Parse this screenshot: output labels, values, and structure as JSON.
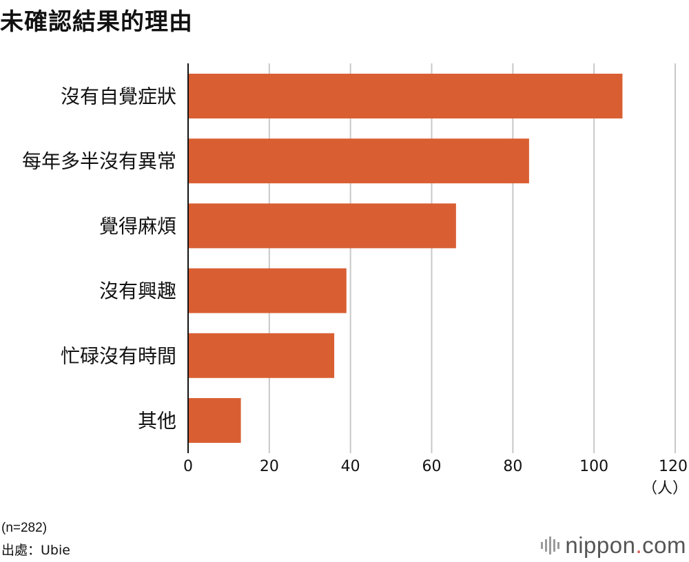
{
  "title": "未確認結果的理由",
  "chart_data": {
    "type": "bar",
    "orientation": "horizontal",
    "title": "未確認結果的理由",
    "categories": [
      "沒有自覺症狀",
      "每年多半沒有異常",
      "覺得麻煩",
      "沒有興趣",
      "忙碌沒有時間",
      "其他"
    ],
    "values": [
      107,
      84,
      66,
      39,
      36,
      13
    ],
    "xlim": [
      0,
      120
    ],
    "xticks": [
      0,
      20,
      40,
      60,
      80,
      100,
      120
    ],
    "unit": "（人）",
    "grid": true,
    "legend": "none",
    "bar_color": "#d95f33"
  },
  "notes": {
    "sample": "(n=282)",
    "source": "出處：Ubie"
  },
  "logo": {
    "main": "nippon",
    "dot": ".",
    "suffix": "com"
  },
  "colors": {
    "bar": "#d95f33",
    "grid": "#c8c8c8",
    "axis": "#111111"
  }
}
